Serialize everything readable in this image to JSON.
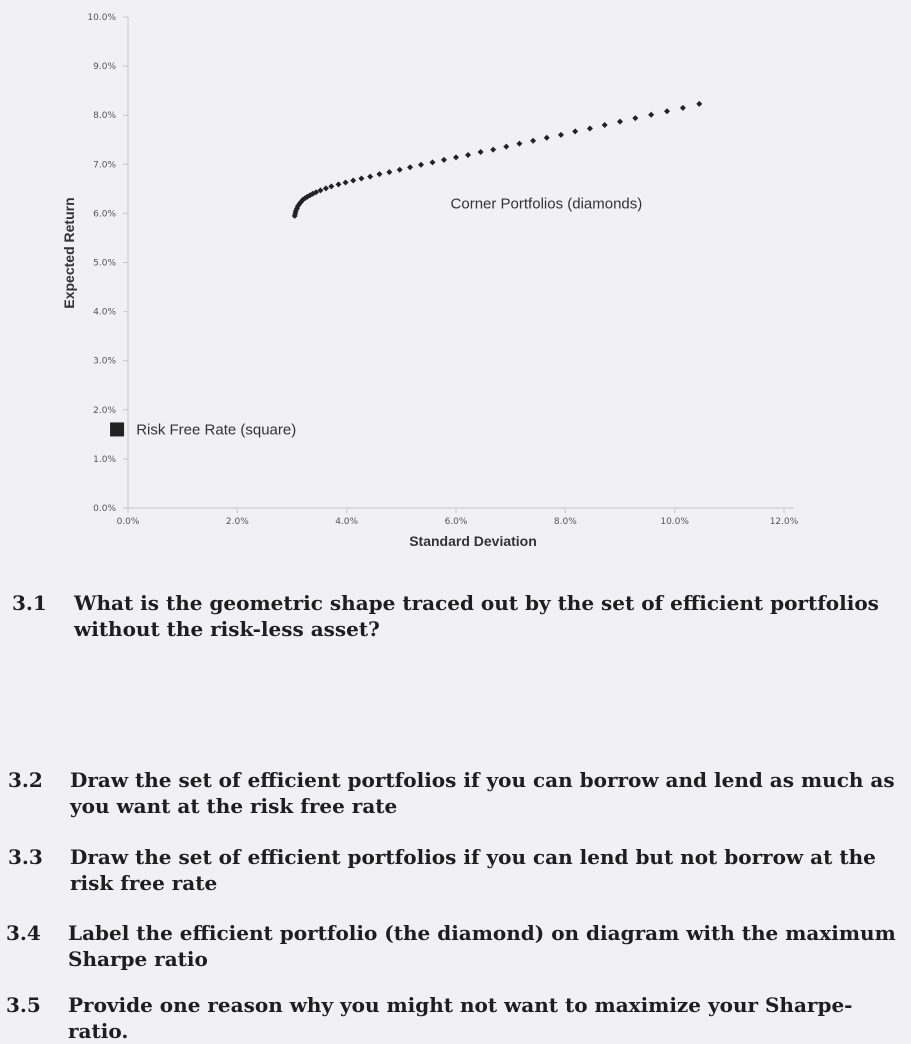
{
  "chart_data": {
    "type": "scatter",
    "xlabel": "Standard Deviation",
    "ylabel": "Expected Return",
    "xlim": [
      0,
      12
    ],
    "ylim": [
      0,
      10
    ],
    "x_ticks": [
      "0.0%",
      "2.0%",
      "4.0%",
      "6.0%",
      "8.0%",
      "10.0%",
      "12.0%"
    ],
    "y_ticks": [
      "0.0%",
      "1.0%",
      "2.0%",
      "3.0%",
      "4.0%",
      "5.0%",
      "6.0%",
      "7.0%",
      "8.0%",
      "9.0%",
      "10.0%"
    ],
    "grid": false,
    "series": [
      {
        "name": "Corner Portfolios (diamonds)",
        "marker": "diamond",
        "color": "#222222",
        "x": [
          3.05,
          3.06,
          3.07,
          3.09,
          3.11,
          3.14,
          3.17,
          3.2,
          3.24,
          3.28,
          3.33,
          3.38,
          3.44,
          3.52,
          3.62,
          3.72,
          3.85,
          3.98,
          4.12,
          4.27,
          4.43,
          4.6,
          4.78,
          4.97,
          5.16,
          5.36,
          5.57,
          5.78,
          6.0,
          6.22,
          6.45,
          6.68,
          6.92,
          7.16,
          7.41,
          7.66,
          7.92,
          8.18,
          8.45,
          8.72,
          9.0,
          9.28,
          9.57,
          9.86,
          10.15,
          10.45
        ],
        "y": [
          5.95,
          6.0,
          6.05,
          6.1,
          6.15,
          6.2,
          6.24,
          6.28,
          6.31,
          6.34,
          6.37,
          6.4,
          6.43,
          6.47,
          6.51,
          6.55,
          6.59,
          6.63,
          6.67,
          6.71,
          6.75,
          6.8,
          6.84,
          6.89,
          6.94,
          6.99,
          7.04,
          7.09,
          7.14,
          7.19,
          7.25,
          7.3,
          7.36,
          7.42,
          7.48,
          7.54,
          7.6,
          7.67,
          7.73,
          7.8,
          7.87,
          7.94,
          8.01,
          8.08,
          8.15,
          8.23
        ]
      },
      {
        "name": "Risk Free Rate (square)",
        "marker": "square",
        "color": "#222222",
        "x": [
          -0.2
        ],
        "y": [
          1.6
        ]
      }
    ],
    "annotations": [
      {
        "text": "Corner Portfolios (diamonds)",
        "x": 5.9,
        "y": 6.2
      },
      {
        "text": "Risk Free Rate (square)",
        "x": 0.15,
        "y": 1.6
      }
    ]
  },
  "questions": [
    {
      "number": "3.1",
      "text": "What is the geometric shape traced out by the set of efficient portfolios without the risk-less asset?"
    },
    {
      "number": "3.2",
      "text": "Draw the set of efficient portfolios if you can borrow and lend as much as you want at the risk free rate"
    },
    {
      "number": "3.3",
      "text": "Draw the set of efficient portfolios if you can lend but not borrow at the risk free rate"
    },
    {
      "number": "3.4",
      "text": "Label the efficient portfolio (the diamond) on diagram with the maximum Sharpe ratio"
    },
    {
      "number": "3.5",
      "text": "Provide one reason why you might not want to maximize your Sharpe-ratio."
    }
  ]
}
